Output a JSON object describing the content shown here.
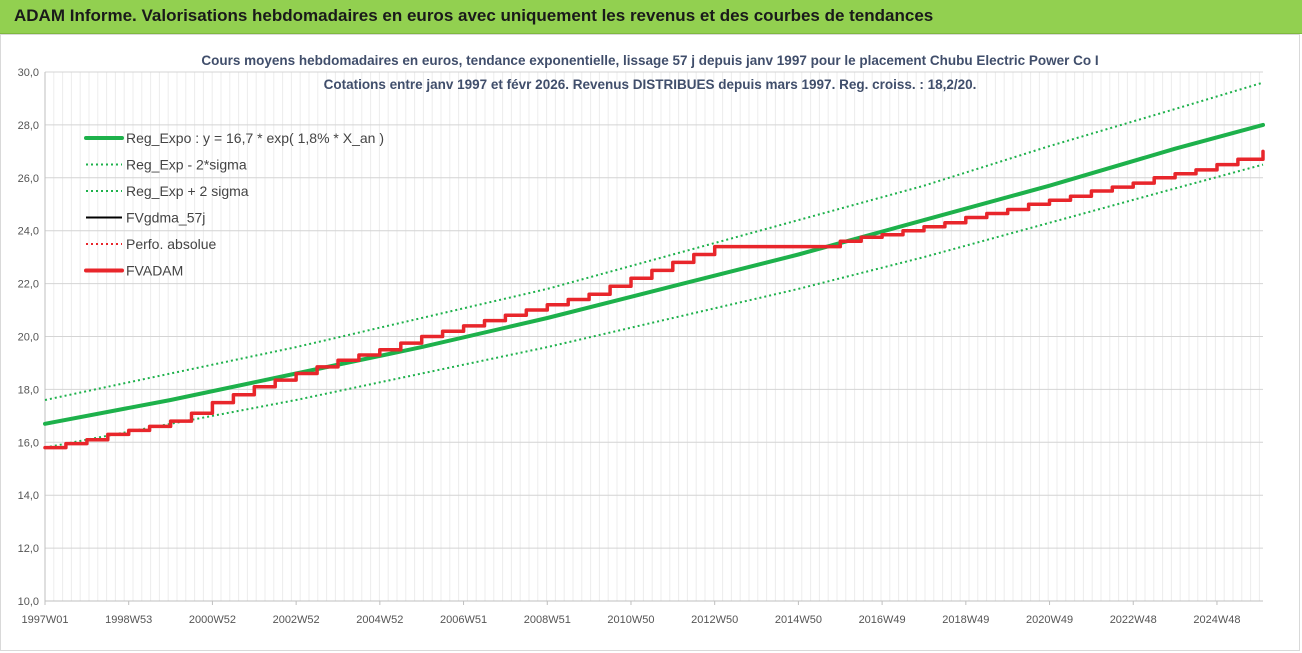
{
  "banner": {
    "title": "ADAM Informe. Valorisations hebdomadaires en euros avec uniquement les revenus et des courbes de tendances"
  },
  "chart_data": {
    "type": "line",
    "title": "Cours moyens hebdomadaires en euros, tendance exponentielle, lissage 57 j depuis janv 1997 pour le placement Chubu Electric Power Co I",
    "subtitle": "Cotations entre janv 1997 et févr 2026. Revenus DISTRIBUES depuis mars 1997. Reg. croiss. : 18,2/20.",
    "xlabel": "",
    "ylabel": "",
    "ylim": [
      10,
      30
    ],
    "yticks": [
      "10,0",
      "12,0",
      "14,0",
      "16,0",
      "18,0",
      "20,0",
      "22,0",
      "24,0",
      "26,0",
      "28,0",
      "30,0"
    ],
    "xlim": [
      1997.0,
      2026.1
    ],
    "xticks": [
      {
        "label": "1997W01",
        "x": 1997.0
      },
      {
        "label": "1998W53",
        "x": 1999.0
      },
      {
        "label": "2000W52",
        "x": 2001.0
      },
      {
        "label": "2002W52",
        "x": 2003.0
      },
      {
        "label": "2004W52",
        "x": 2005.0
      },
      {
        "label": "2006W51",
        "x": 2007.0
      },
      {
        "label": "2008W51",
        "x": 2009.0
      },
      {
        "label": "2010W50",
        "x": 2011.0
      },
      {
        "label": "2012W50",
        "x": 2013.0
      },
      {
        "label": "2014W50",
        "x": 2015.0
      },
      {
        "label": "2016W49",
        "x": 2017.0
      },
      {
        "label": "2018W49",
        "x": 2019.0
      },
      {
        "label": "2020W49",
        "x": 2021.0
      },
      {
        "label": "2022W48",
        "x": 2023.0
      },
      {
        "label": "2024W48",
        "x": 2025.0
      }
    ],
    "grid": true,
    "legend_position": "top-left",
    "series": [
      {
        "name": "Reg_Expo : y = 16,7 * exp( 1,8% *  X_an )",
        "color": "#1db14b",
        "style": "solid-thick",
        "x": [
          1997.0,
          2000.0,
          2003.0,
          2006.0,
          2009.0,
          2012.0,
          2015.0,
          2018.0,
          2021.0,
          2024.0,
          2026.1
        ],
        "values": [
          16.7,
          17.6,
          18.6,
          19.6,
          20.7,
          21.9,
          23.1,
          24.4,
          25.7,
          27.1,
          28.0
        ]
      },
      {
        "name": "Reg_Exp - 2*sigma",
        "color": "#1db14b",
        "style": "dotted",
        "x": [
          1997.0,
          2000.0,
          2003.0,
          2006.0,
          2009.0,
          2012.0,
          2015.0,
          2018.0,
          2021.0,
          2024.0,
          2026.1
        ],
        "values": [
          15.8,
          16.7,
          17.6,
          18.6,
          19.6,
          20.7,
          21.8,
          23.0,
          24.3,
          25.6,
          26.5
        ]
      },
      {
        "name": "Reg_Exp + 2 sigma",
        "color": "#1db14b",
        "style": "dotted",
        "x": [
          1997.0,
          2000.0,
          2003.0,
          2006.0,
          2009.0,
          2012.0,
          2015.0,
          2018.0,
          2021.0,
          2024.0,
          2026.1
        ],
        "values": [
          17.6,
          18.6,
          19.6,
          20.7,
          21.8,
          23.1,
          24.4,
          25.7,
          27.2,
          28.6,
          29.6
        ]
      },
      {
        "name": "FVgdma_57j",
        "color": "#000000",
        "style": "solid",
        "x": [],
        "values": []
      },
      {
        "name": "Perfo. absolue",
        "color": "#e8262b",
        "style": "dotted",
        "x": [],
        "values": []
      },
      {
        "name": "FVADAM",
        "color": "#e8262b",
        "style": "solid-thick",
        "x": [
          1997.0,
          1997.5,
          1998.0,
          1998.5,
          1999.0,
          1999.5,
          2000.0,
          2000.5,
          2001.0,
          2001.5,
          2002.0,
          2002.5,
          2003.0,
          2003.5,
          2004.0,
          2004.5,
          2005.0,
          2005.5,
          2006.0,
          2006.5,
          2007.0,
          2007.5,
          2008.0,
          2008.5,
          2009.0,
          2009.5,
          2010.0,
          2010.5,
          2011.0,
          2011.5,
          2012.0,
          2012.5,
          2013.0,
          2015.0,
          2016.0,
          2016.5,
          2017.0,
          2017.5,
          2018.0,
          2018.5,
          2019.0,
          2019.5,
          2020.0,
          2020.5,
          2021.0,
          2021.5,
          2022.0,
          2022.5,
          2023.0,
          2023.5,
          2024.0,
          2024.5,
          2025.0,
          2025.5,
          2026.1
        ],
        "values": [
          15.8,
          15.95,
          16.1,
          16.3,
          16.45,
          16.6,
          16.8,
          17.1,
          17.5,
          17.8,
          18.1,
          18.35,
          18.6,
          18.85,
          19.1,
          19.3,
          19.5,
          19.75,
          20.0,
          20.2,
          20.4,
          20.6,
          20.8,
          21.0,
          21.2,
          21.4,
          21.6,
          21.9,
          22.2,
          22.5,
          22.8,
          23.1,
          23.4,
          23.4,
          23.6,
          23.75,
          23.85,
          24.0,
          24.15,
          24.3,
          24.5,
          24.65,
          24.8,
          25.0,
          25.15,
          25.3,
          25.5,
          25.65,
          25.8,
          26.0,
          26.15,
          26.3,
          26.5,
          26.7,
          27.0
        ]
      }
    ]
  }
}
